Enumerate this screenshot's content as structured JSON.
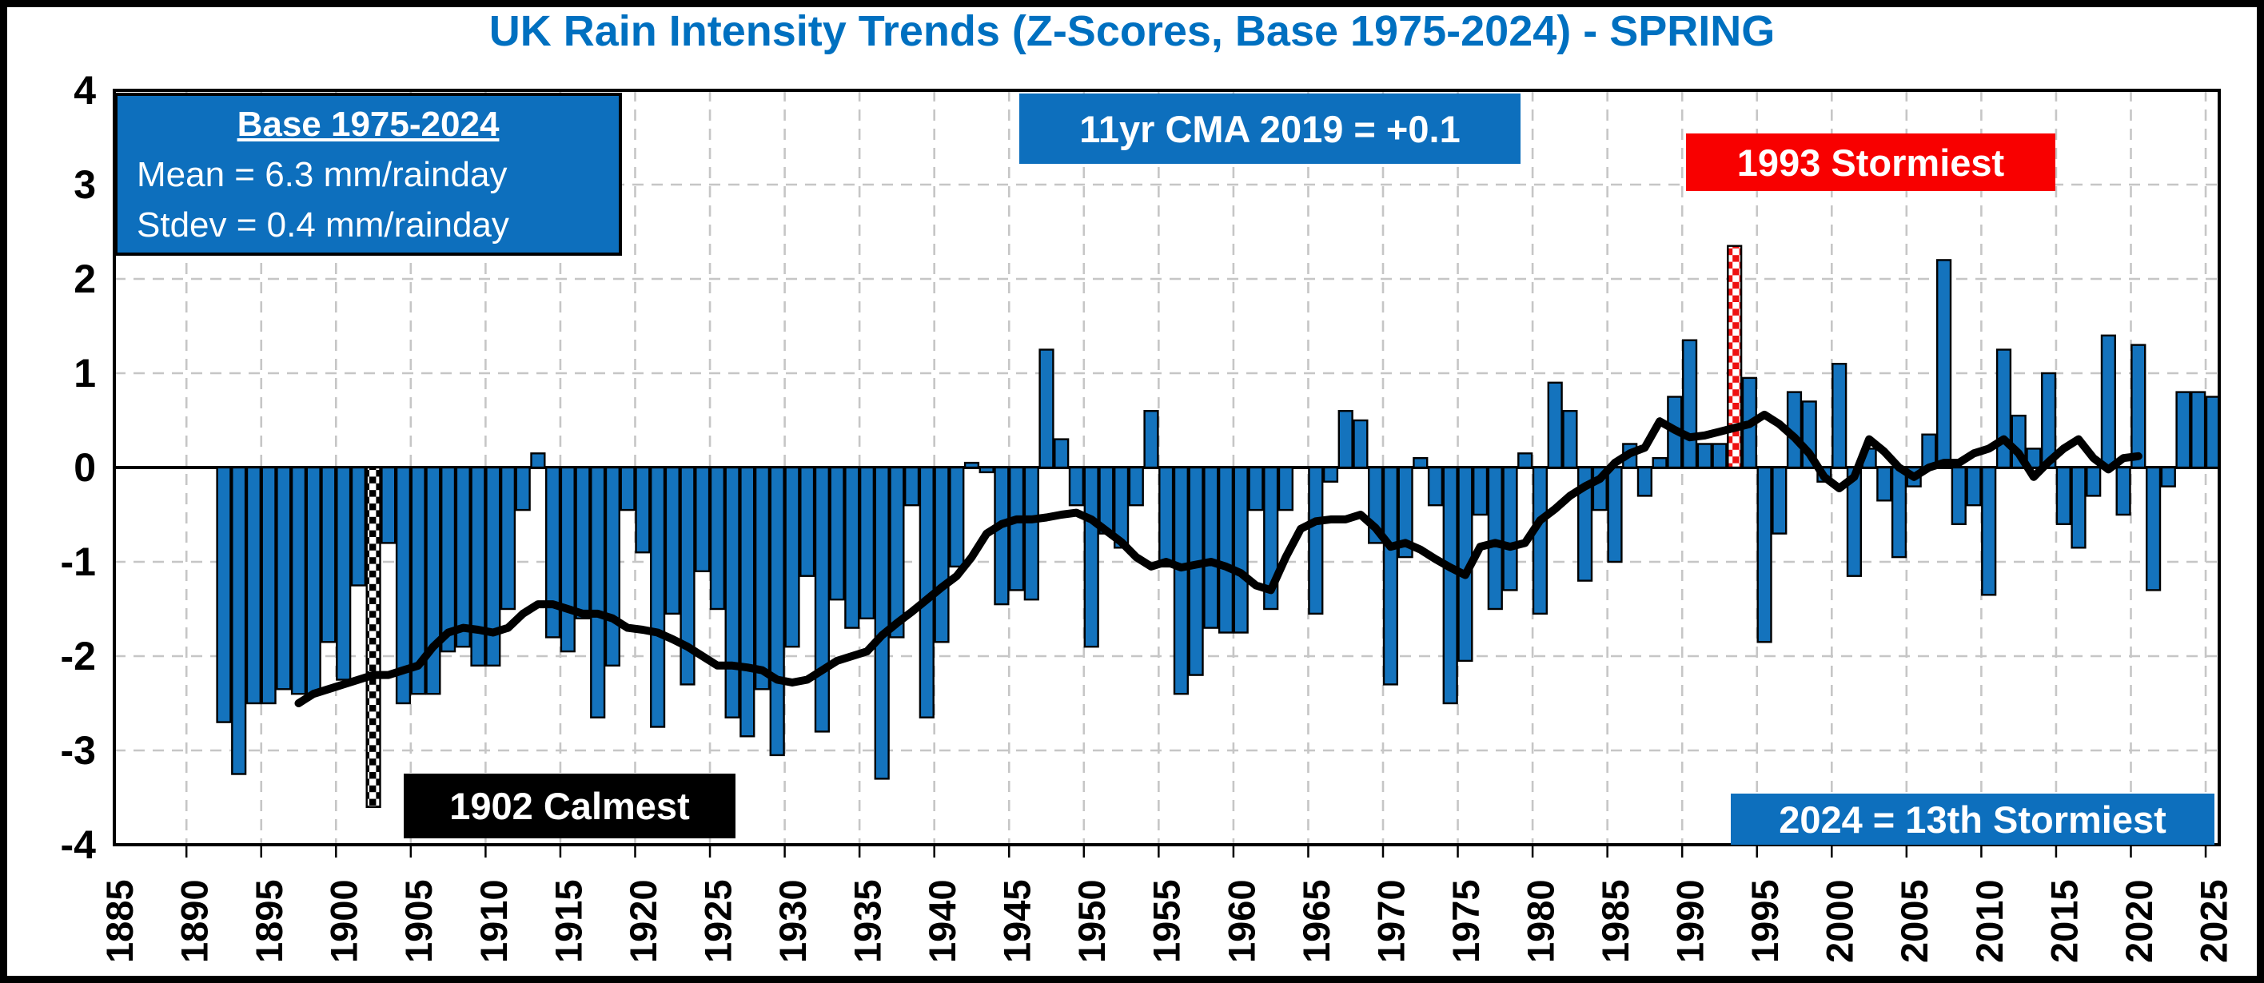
{
  "title": {
    "text": "UK Rain Intensity Trends (Z-Scores, Base 1975-2024) - SPRING"
  },
  "info_box": {
    "heading": "Base 1975-2024",
    "line1": "Mean = 6.3 mm/rainday",
    "line2": "Stdev = 0.4 mm/rainday"
  },
  "annotations": {
    "cma_label": "11yr CMA 2019 = +0.1",
    "stormiest_label": "1993 Stormiest",
    "calmest_label": "1902 Calmest",
    "storm2024_label": "2024 = 13th Stormiest"
  },
  "colors": {
    "bar_blue": "#1473BD",
    "box_blue": "#0D6FBD",
    "box_red": "#F80000",
    "box_black": "#000000",
    "title_blue": "#0070C0",
    "grid_gray": "#C6C6C6",
    "cma_line": "#000000",
    "calmest_checker": "#000000",
    "stormiest_checker": "#EE1111",
    "plot_frame": "#000000"
  },
  "chart_data": {
    "type": "bar",
    "title": "UK Rain Intensity Trends (Z-Scores, Base 1975-2024) - SPRING",
    "xlabel": "",
    "ylabel": "",
    "ylim": [
      -4,
      4
    ],
    "grid": true,
    "y_ticks": [
      "4",
      "3",
      "2",
      "1",
      "0",
      "-1",
      "-2",
      "-3",
      "-4"
    ],
    "x_ticks": [
      "1885",
      "1890",
      "1895",
      "1900",
      "1905",
      "1910",
      "1915",
      "1920",
      "1925",
      "1930",
      "1935",
      "1940",
      "1945",
      "1950",
      "1955",
      "1960",
      "1965",
      "1970",
      "1975",
      "1980",
      "1985",
      "1990",
      "1995",
      "2000",
      "2005",
      "2010",
      "2015",
      "2020",
      "2025"
    ],
    "bars_start_year": 1892,
    "values": [
      -2.7,
      -3.25,
      -2.5,
      -2.5,
      -2.35,
      -2.4,
      -2.4,
      -1.85,
      -2.25,
      -1.25,
      -3.6,
      -0.8,
      -2.5,
      -2.4,
      -2.4,
      -1.95,
      -1.9,
      -2.1,
      -2.1,
      -1.5,
      -0.45,
      0.15,
      -1.8,
      -1.95,
      -1.6,
      -2.65,
      -2.1,
      -0.45,
      -0.9,
      -2.75,
      -1.55,
      -2.3,
      -1.1,
      -1.5,
      -2.65,
      -2.85,
      -2.35,
      -3.05,
      -1.9,
      -1.15,
      -2.8,
      -1.4,
      -1.7,
      -1.6,
      -3.3,
      -1.8,
      -0.4,
      -2.65,
      -1.85,
      -1.05,
      0.05,
      -0.05,
      -1.45,
      -1.3,
      -1.4,
      1.25,
      0.3,
      -0.4,
      -1.9,
      -0.7,
      -0.85,
      -0.4,
      0.6,
      -1.05,
      -2.4,
      -2.2,
      -1.7,
      -1.75,
      -1.75,
      -0.45,
      -1.5,
      -0.45,
      0.0,
      -1.55,
      -0.15,
      0.6,
      0.5,
      -0.8,
      -2.3,
      -0.95,
      0.1,
      -0.4,
      -2.5,
      -2.05,
      -0.5,
      -1.5,
      -1.3,
      0.15,
      -1.55,
      0.9,
      0.6,
      -1.2,
      -0.45,
      -1.0,
      0.25,
      -0.3,
      0.1,
      0.75,
      1.35,
      0.25,
      0.25,
      2.35,
      0.95,
      -1.85,
      -0.7,
      0.8,
      0.7,
      -0.15,
      1.1,
      -1.15,
      0.2,
      -0.35,
      -0.95,
      -0.2,
      0.35,
      2.2,
      -0.6,
      -0.4,
      -1.35,
      1.25,
      0.55,
      0.2,
      1.0,
      -0.6,
      -0.85,
      -0.3,
      1.4,
      -0.5,
      1.3,
      -1.3,
      -0.2,
      0.8,
      0.8,
      0.75
    ],
    "special_years": {
      "calmest": 1902,
      "stormiest": 1993
    },
    "line": {
      "name": "11yr CMA",
      "start_year": 1897,
      "values": [
        -2.5,
        -2.4,
        -2.35,
        -2.3,
        -2.25,
        -2.2,
        -2.2,
        -2.15,
        -2.1,
        -1.9,
        -1.75,
        -1.7,
        -1.72,
        -1.75,
        -1.7,
        -1.55,
        -1.45,
        -1.45,
        -1.5,
        -1.55,
        -1.55,
        -1.6,
        -1.7,
        -1.72,
        -1.75,
        -1.82,
        -1.9,
        -2.0,
        -2.1,
        -2.1,
        -2.12,
        -2.15,
        -2.25,
        -2.28,
        -2.25,
        -2.15,
        -2.05,
        -2.0,
        -1.95,
        -1.78,
        -1.65,
        -1.53,
        -1.4,
        -1.27,
        -1.15,
        -0.95,
        -0.7,
        -0.6,
        -0.55,
        -0.55,
        -0.53,
        -0.5,
        -0.48,
        -0.55,
        -0.67,
        -0.79,
        -0.95,
        -1.05,
        -1.0,
        -1.06,
        -1.03,
        -1.0,
        -1.05,
        -1.12,
        -1.25,
        -1.3,
        -0.95,
        -0.65,
        -0.57,
        -0.55,
        -0.55,
        -0.5,
        -0.64,
        -0.84,
        -0.8,
        -0.87,
        -0.97,
        -1.06,
        -1.14,
        -0.84,
        -0.8,
        -0.84,
        -0.8,
        -0.56,
        -0.44,
        -0.3,
        -0.2,
        -0.12,
        0.05,
        0.15,
        0.21,
        0.49,
        0.4,
        0.32,
        0.34,
        0.38,
        0.42,
        0.46,
        0.56,
        0.46,
        0.32,
        0.15,
        -0.1,
        -0.22,
        -0.1,
        0.3,
        0.17,
        0.0,
        -0.1,
        0.0,
        0.05,
        0.05,
        0.15,
        0.2,
        0.3,
        0.15,
        -0.1,
        0.06,
        0.2,
        0.3,
        0.1,
        -0.02,
        0.1,
        0.12
      ]
    }
  }
}
